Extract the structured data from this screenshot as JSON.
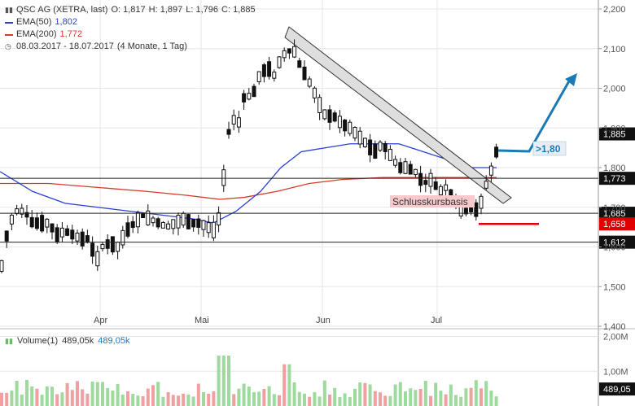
{
  "header": {
    "title": "QSC AG (XETRA, last)",
    "open": "O: 1,817",
    "high": "H: 1,897",
    "low": "L: 1,796",
    "close": "C: 1,885",
    "ema50_label": "EMA(50)",
    "ema50_value": "1,802",
    "ema200_label": "EMA(200)",
    "ema200_value": "1,772",
    "range": "08.03.2017 - 18.07.2017",
    "range_detail": "(4 Monate, 1 Tag)",
    "bar_icon": "candlestick-icon",
    "clock_icon": "clock-icon"
  },
  "volume_legend": {
    "label": "Volume(1)",
    "value1": "489,05k",
    "value2": "489,05k",
    "icon": "volume-bars-icon"
  },
  "colors": {
    "ema50": "#2a3fd6",
    "ema200": "#d63a2a",
    "arrow": "#1a7ab5",
    "support": "#e00000",
    "vol_up": "#9ed99e",
    "vol_down": "#f0a0a0",
    "channel_fill": "#dedede"
  },
  "chart_data": {
    "type": "candlestick",
    "y_ticks": [
      "2,200",
      "2,100",
      "2,000",
      "1,900",
      "1,800",
      "1,700",
      "1,600",
      "1,500",
      "1,400"
    ],
    "ylim": [
      1.4,
      2.2
    ],
    "x_ticks": [
      "Apr",
      "Mai",
      "Jun",
      "Jul"
    ],
    "horizontal_lines": [
      {
        "value": 1.773,
        "label": "1,773"
      },
      {
        "value": 1.685,
        "label": "1,685"
      },
      {
        "value": 1.612,
        "label": "1,612"
      }
    ],
    "price_tags": [
      {
        "value": 1.885,
        "label": "1,885",
        "style": "last"
      },
      {
        "value": 1.658,
        "label": "1,658",
        "style": "support"
      }
    ],
    "annotations": {
      "support_text": "Schlusskursbasis",
      "target_text": ">1,80"
    },
    "volume": {
      "y_ticks": [
        "2,00M",
        "1,00M"
      ],
      "ylim": [
        0,
        2.0
      ],
      "last_label": "489,05"
    }
  }
}
